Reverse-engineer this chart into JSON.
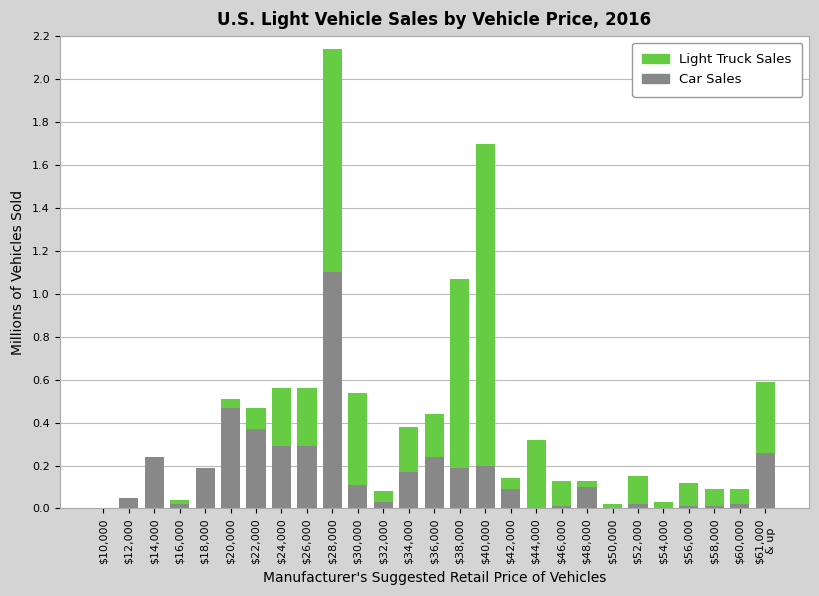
{
  "title": "U.S. Light Vehicle Sales by Vehicle Price, 2016",
  "xlabel": "Manufacturer's Suggested Retail Price of Vehicles",
  "ylabel": "Millions of Vehicles Sold",
  "categories": [
    "$10,000",
    "$12,000",
    "$14,000",
    "$16,000",
    "$18,000",
    "$20,000",
    "$22,000",
    "$24,000",
    "$26,000",
    "$28,000",
    "$30,000",
    "$32,000",
    "$34,000",
    "$36,000",
    "$38,000",
    "$40,000",
    "$42,000",
    "$44,000",
    "$46,000",
    "$48,000",
    "$50,000",
    "$52,000",
    "$54,000",
    "$56,000",
    "$58,000",
    "$60,000",
    "$61,000\n& up"
  ],
  "light_truck_sales": [
    0.0,
    0.0,
    0.0,
    0.02,
    0.0,
    0.04,
    0.1,
    0.27,
    0.27,
    1.04,
    0.43,
    0.05,
    0.21,
    0.2,
    0.88,
    1.5,
    0.05,
    0.32,
    0.12,
    0.03,
    0.02,
    0.13,
    0.03,
    0.11,
    0.08,
    0.07,
    0.33
  ],
  "car_sales": [
    0.0,
    0.05,
    0.24,
    0.02,
    0.19,
    0.47,
    0.37,
    0.29,
    0.29,
    1.1,
    0.11,
    0.03,
    0.17,
    0.24,
    0.19,
    0.2,
    0.09,
    0.0,
    0.01,
    0.1,
    0.0,
    0.02,
    0.0,
    0.01,
    0.01,
    0.02,
    0.26
  ],
  "truck_color": "#66cc44",
  "car_color": "#888888",
  "background_color": "#d4d4d4",
  "plot_background": "#ffffff",
  "ylim": [
    0,
    2.2
  ],
  "yticks": [
    0.0,
    0.2,
    0.4,
    0.6,
    0.8,
    1.0,
    1.2,
    1.4,
    1.6,
    1.8,
    2.0,
    2.2
  ],
  "title_fontsize": 12,
  "label_fontsize": 10,
  "tick_fontsize": 8
}
